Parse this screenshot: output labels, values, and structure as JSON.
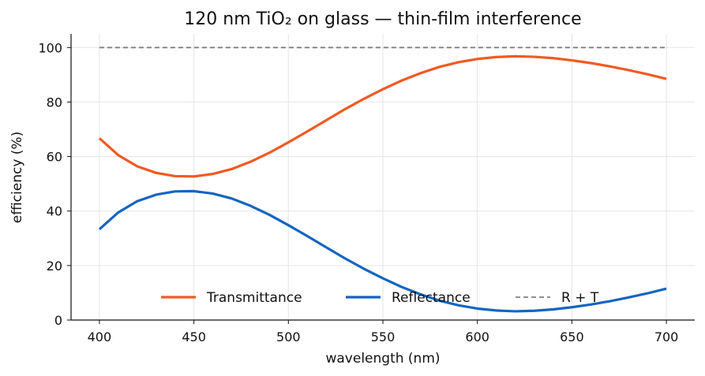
{
  "chart_data": {
    "type": "line",
    "title": "120 nm TiO₂ on glass — thin-film interference",
    "xlabel": "wavelength (nm)",
    "ylabel": "efficiency (%)",
    "xlim": [
      385,
      715
    ],
    "ylim": [
      0,
      105
    ],
    "xticks": [
      400,
      450,
      500,
      550,
      600,
      650,
      700
    ],
    "yticks": [
      0,
      20,
      40,
      60,
      80,
      100
    ],
    "grid": true,
    "legend_position": "bottom",
    "x": [
      400,
      410,
      420,
      430,
      440,
      450,
      460,
      470,
      480,
      490,
      500,
      510,
      520,
      530,
      540,
      550,
      560,
      570,
      580,
      590,
      600,
      610,
      620,
      630,
      640,
      650,
      660,
      670,
      680,
      690,
      700
    ],
    "series": [
      {
        "name": "Transmittance",
        "color": "#f05a22",
        "style": "solid",
        "values": [
          66.7,
          60.5,
          56.4,
          54.0,
          52.8,
          52.7,
          53.6,
          55.4,
          58.1,
          61.4,
          65.2,
          69.2,
          73.3,
          77.4,
          81.2,
          84.7,
          87.9,
          90.6,
          92.9,
          94.6,
          95.8,
          96.5,
          96.8,
          96.6,
          96.1,
          95.3,
          94.3,
          93.1,
          91.7,
          90.2,
          88.5
        ]
      },
      {
        "name": "Reflectance",
        "color": "#1565c0",
        "style": "solid",
        "values": [
          33.3,
          39.5,
          43.6,
          46.0,
          47.2,
          47.3,
          46.4,
          44.6,
          41.9,
          38.6,
          34.8,
          30.8,
          26.7,
          22.6,
          18.8,
          15.3,
          12.1,
          9.4,
          7.1,
          5.4,
          4.2,
          3.5,
          3.2,
          3.4,
          3.9,
          4.7,
          5.7,
          6.9,
          8.3,
          9.8,
          11.5
        ]
      },
      {
        "name": "R + T",
        "color": "#808080",
        "style": "dashed",
        "values": [
          100,
          100,
          100,
          100,
          100,
          100,
          100,
          100,
          100,
          100,
          100,
          100,
          100,
          100,
          100,
          100,
          100,
          100,
          100,
          100,
          100,
          100,
          100,
          100,
          100,
          100,
          100,
          100,
          100,
          100,
          100
        ]
      }
    ]
  }
}
